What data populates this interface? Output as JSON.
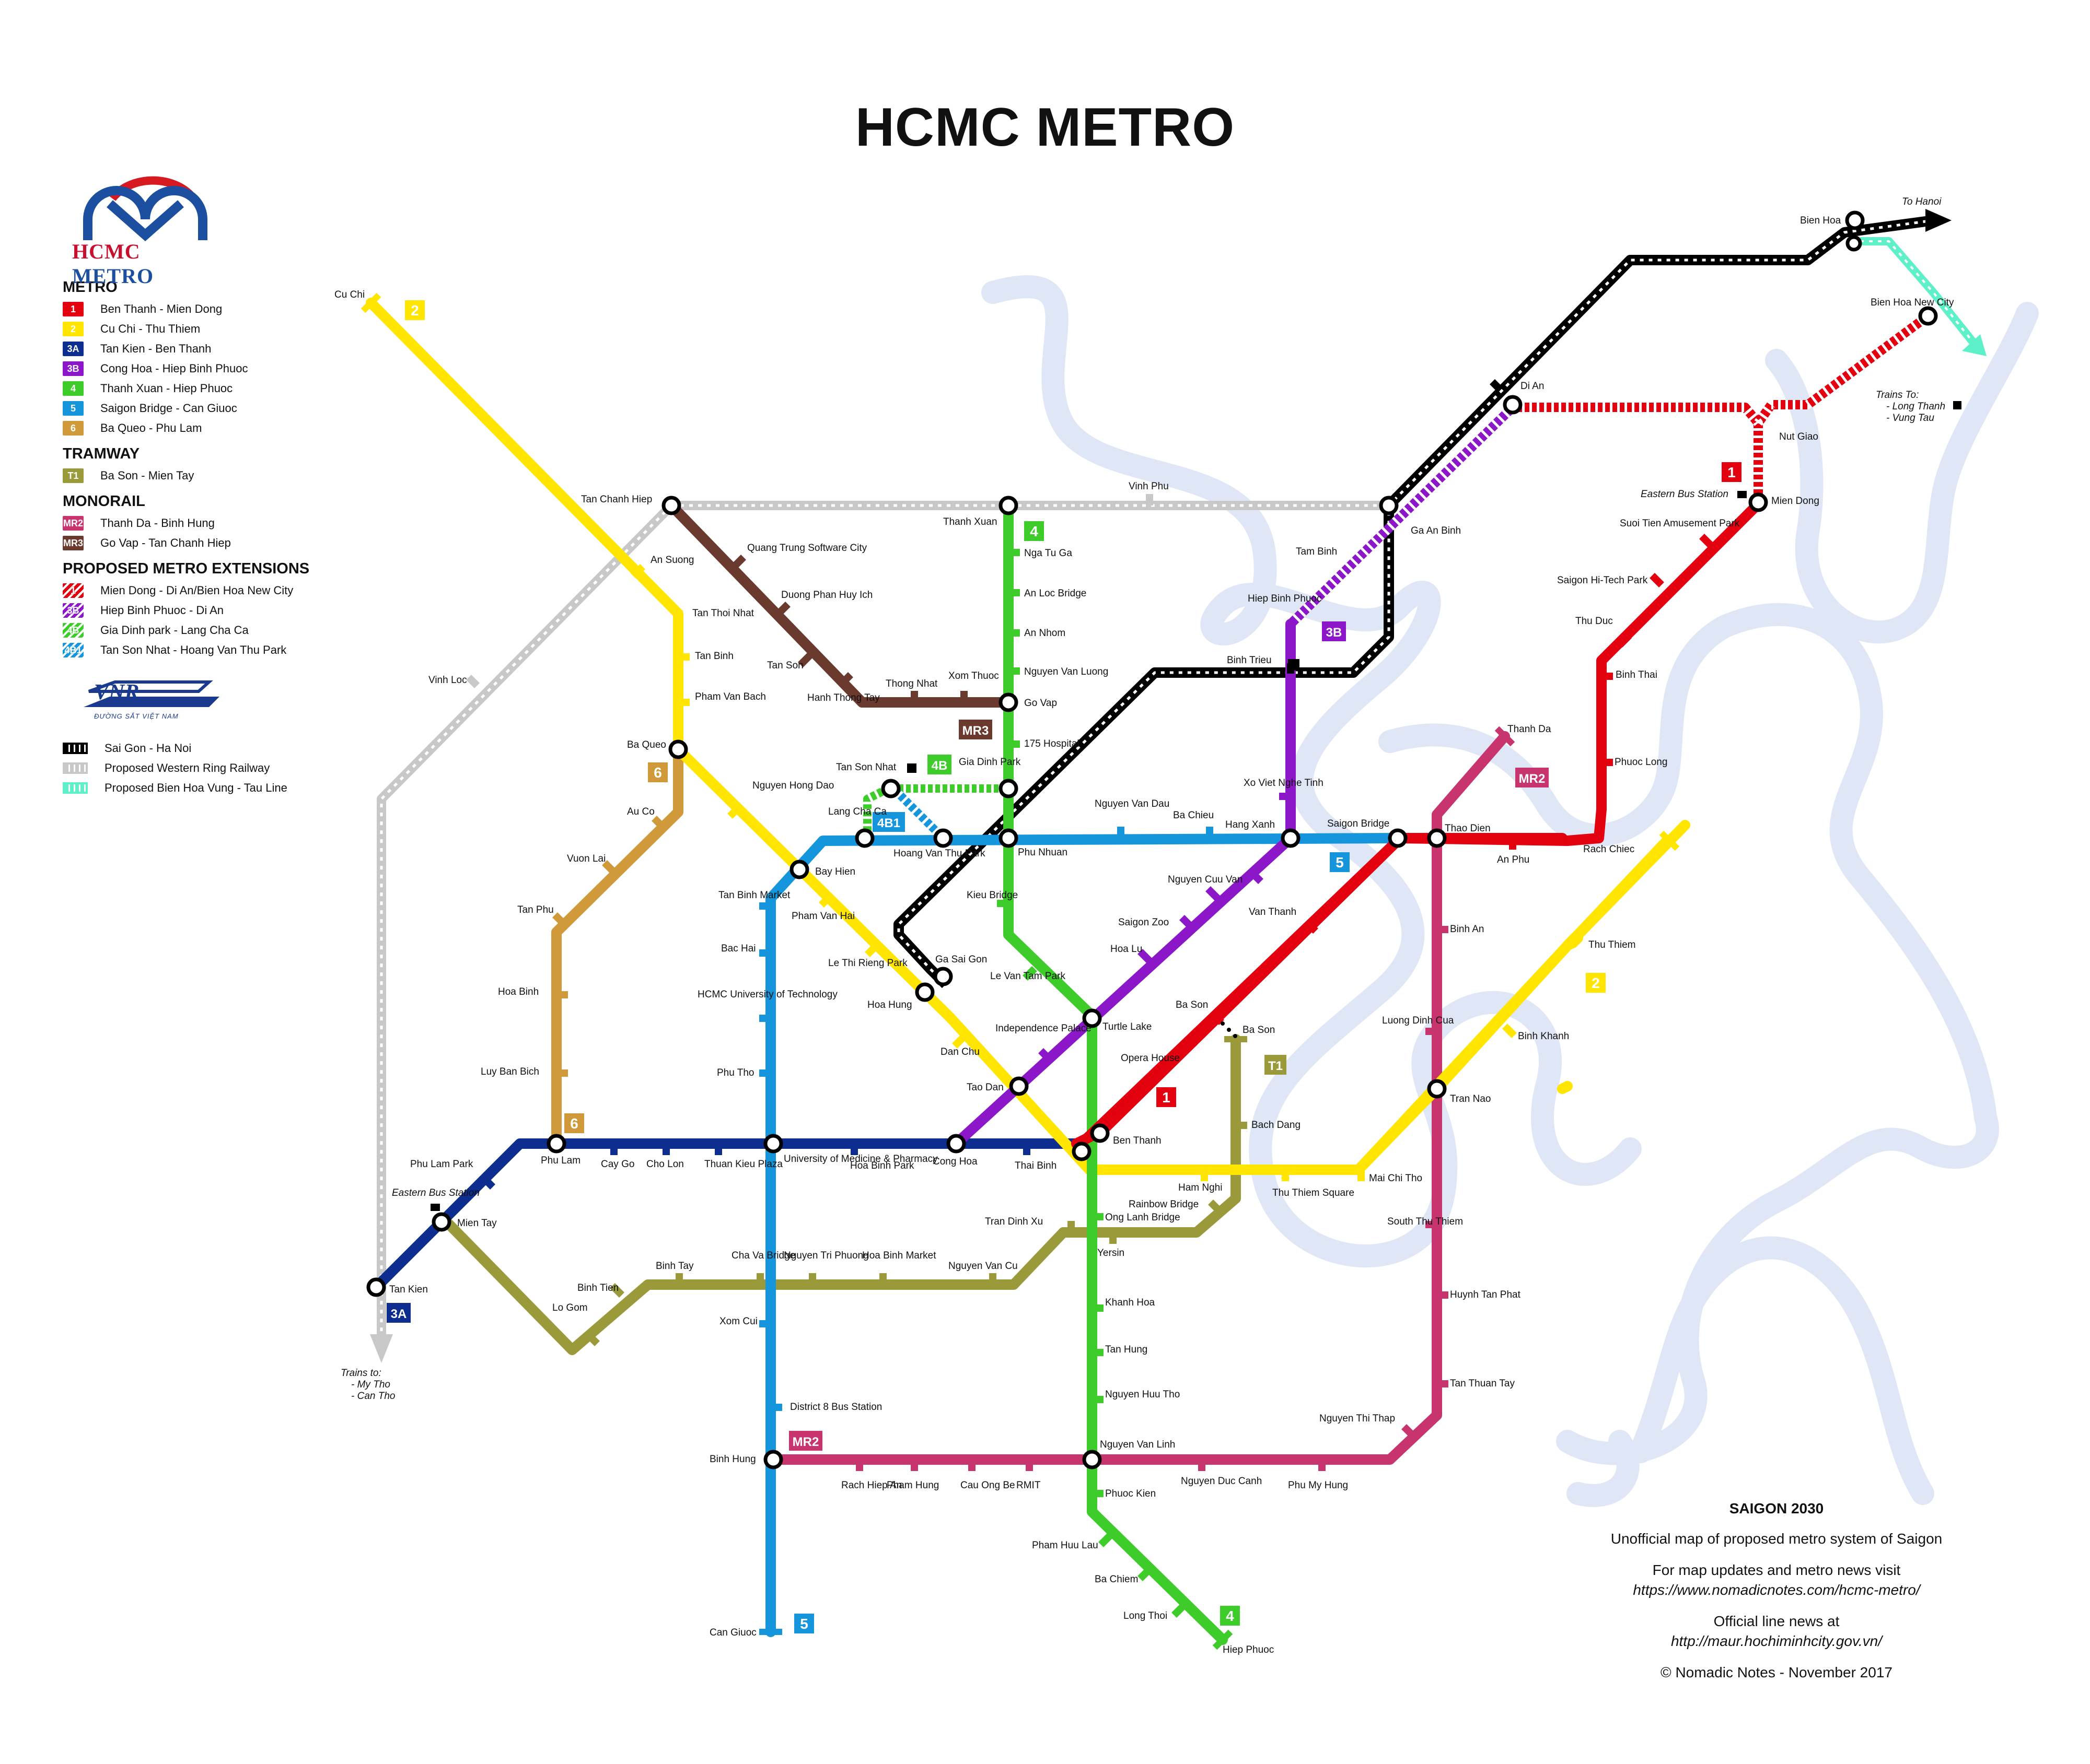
{
  "title": "HCMC METRO",
  "logo": {
    "text_a": "HCMC",
    "text_b": "METRO"
  },
  "legend": {
    "metro_heading": "METRO",
    "metro": [
      {
        "code": "1",
        "name": "Ben Thanh - Mien Dong",
        "color": "#e3000f"
      },
      {
        "code": "2",
        "name": "Cu Chi - Thu Thiem",
        "color": "#ffe500"
      },
      {
        "code": "3A",
        "name": "Tan Kien - Ben Thanh",
        "color": "#0d2e8f"
      },
      {
        "code": "3B",
        "name": "Cong Hoa - Hiep Binh Phuoc",
        "color": "#8b17c8"
      },
      {
        "code": "4",
        "name": "Thanh Xuan - Hiep Phuoc",
        "color": "#3dcc2a"
      },
      {
        "code": "5",
        "name": "Saigon Bridge - Can Giuoc",
        "color": "#1596dc"
      },
      {
        "code": "6",
        "name": "Ba Queo - Phu Lam",
        "color": "#d09a3a"
      }
    ],
    "tram_heading": "TRAMWAY",
    "tram": [
      {
        "code": "T1",
        "name": "Ba Son - Mien Tay",
        "color": "#9a9a3a"
      }
    ],
    "mono_heading": "MONORAIL",
    "mono": [
      {
        "code": "MR2",
        "name": "Thanh Da - Binh Hung",
        "color": "#c8346e"
      },
      {
        "code": "MR3",
        "name": "Go Vap - Tan Chanh Hiep",
        "color": "#6b3a2e"
      }
    ],
    "ext_heading": "PROPOSED METRO EXTENSIONS",
    "ext": [
      {
        "code": "1",
        "name": "Mien Dong - Di An/Bien Hoa New City",
        "color": "#e3000f"
      },
      {
        "code": "3B",
        "name": "Hiep Binh Phuoc - Di An",
        "color": "#8b17c8"
      },
      {
        "code": "4B",
        "name": "Gia Dinh park - Lang Cha Ca",
        "color": "#3dcc2a"
      },
      {
        "code": "4B1",
        "name": "Tan Son Nhat - Hoang Van Thu Park",
        "color": "#1596dc"
      }
    ],
    "vnr_logo": "VNR",
    "vnr_sub": "ĐƯỜNG SẮT VIỆT NAM",
    "rail": [
      {
        "name": "Sai Gon - Ha Noi",
        "color": "#000000"
      },
      {
        "name": "Proposed Western Ring Railway",
        "color": "#c8c8c8"
      },
      {
        "name": "Proposed Bien Hoa Vung - Tau Line",
        "color": "#5ef0c8"
      }
    ]
  },
  "info": {
    "heading": "SAIGON 2030",
    "line1": "Unofficial map of proposed metro system of Saigon",
    "line2": "For map updates and metro news visit",
    "line3": "https://www.nomadicnotes.com/hcmc-metro/",
    "line4": "Official line news at",
    "line5": "http://maur.hochiminhcity.gov.vn/",
    "line6": "© Nomadic Notes - November 2017"
  },
  "map": {
    "colors": {
      "l1": "#e3000f",
      "l2": "#ffe500",
      "l3a": "#0d2e8f",
      "l3b": "#8b17c8",
      "l4": "#3dcc2a",
      "l5": "#1596dc",
      "l6": "#d09a3a",
      "t1": "#9a9a3a",
      "mr2": "#c8346e",
      "mr3": "#6b3a2e",
      "rail": "#000000",
      "ring": "#c8c8c8",
      "bvt": "#5ef0c8",
      "river": "#dfe6f6"
    },
    "line_tags": {
      "l2_top": "2",
      "l2_right": "2",
      "l3a": "3A",
      "l3b": "3B",
      "l4_top": "4",
      "l4_bottom": "4",
      "l5_right": "5",
      "l5_bottom": "5",
      "l6_top": "6",
      "l6_bottom": "6",
      "t1": "T1",
      "mr2_top": "MR2",
      "mr2_bottom": "MR2",
      "mr3": "MR3",
      "l1_top": "1",
      "l1_mid": "1",
      "e4b": "4B",
      "e4b1": "4B1"
    },
    "labels": {
      "cu_chi": "Cu Chi",
      "an_suong": "An Suong",
      "tan_chanh_hiep": "Tan Chanh Hiep",
      "tan_thoi_nhat": "Tan Thoi Nhat",
      "tan_binh": "Tan Binh",
      "pham_van_bach": "Pham Van Bach",
      "ba_queo": "Ba Queo",
      "nguyen_hong_dao": "Nguyen Hong Dao",
      "bay_hien": "Bay Hien",
      "pham_van_hai": "Pham Van Hai",
      "le_thi_rieng": "Le Thi Rieng Park",
      "hoa_hung": "Hoa Hung",
      "dan_chu": "Dan Chu",
      "tao_dan": "Tao Dan",
      "ben_thanh": "Ben Thanh",
      "ham_nghi": "Ham Nghi",
      "thu_thiem_sq": "Thu Thiem Square",
      "mai_chi_tho": "Mai Chi Tho",
      "tran_nao": "Tran Nao",
      "binh_khanh": "Binh Khanh",
      "thu_thiem": "Thu Thiem",
      "quang_trung": "Quang Trung Software City",
      "duong_phan": "Duong Phan Huy Ich",
      "tan_son": "Tan Son",
      "hanh_thong_tay": "Hanh Thong Tay",
      "thong_nhat": "Thong Nhat",
      "xom_thuoc": "Xom Thuoc",
      "go_vap": "Go Vap",
      "thanh_xuan": "Thanh Xuan",
      "nga_tu_ga": "Nga Tu Ga",
      "an_loc": "An Loc Bridge",
      "an_nhom": "An Nhom",
      "nguyen_van_luong": "Nguyen Van Luong",
      "hospital_175": "175 Hospital",
      "gia_dinh_park": "Gia Dinh Park",
      "phu_nhuan": "Phu Nhuan",
      "kieu_bridge": "Kieu Bridge",
      "le_van_tam": "Le Van Tam Park",
      "turtle_lake": "Turtle Lake",
      "ong_lanh": "Ong Lanh Bridge",
      "yersin": "Yersin",
      "khanh_hoa": "Khanh Hoa",
      "tan_hung": "Tan Hung",
      "nguyen_huu_tho": "Nguyen Huu Tho",
      "nguyen_van_linh": "Nguyen Van Linh",
      "phuoc_kien": "Phuoc Kien",
      "pham_huu_lau": "Pham Huu Lau",
      "ba_chiem": "Ba Chiem",
      "long_thoi": "Long Thoi",
      "hiep_phuoc": "Hiep Phuoc",
      "tan_son_nhat": "Tan Son Nhat",
      "lang_cha_ca": "Lang Cha Ca",
      "hoang_van_thu": "Hoang Van Thu Park",
      "nguyen_van_dau": "Nguyen Van Dau",
      "ba_chieu": "Ba Chieu",
      "hang_xanh": "Hang Xanh",
      "saigon_bridge": "Saigon Bridge",
      "tan_binh_market": "Tan Binh Market",
      "bac_hai": "Bac Hai",
      "hcmc_tech": "HCMC University of Technology",
      "phu_tho": "Phu Tho",
      "univ_med": "University of Medicine & Pharmacy",
      "xom_cui": "Xom Cui",
      "district8": "District 8 Bus Station",
      "binh_hung": "Binh Hung",
      "can_giuoc": "Can Giuoc",
      "thao_dien": "Thao Dien",
      "an_phu": "An Phu",
      "rach_chiec": "Rach Chiec",
      "phuoc_long": "Phuoc Long",
      "binh_thai": "Binh Thai",
      "thu_duc": "Thu Duc",
      "saigon_hitech": "Saigon Hi-Tech Park",
      "suoi_tien": "Suoi Tien Amusement Park",
      "mien_dong": "Mien Dong",
      "eastern_bus_1": "Eastern Bus Station",
      "van_thanh": "Van Thanh",
      "ba_son_1": "Ba Son",
      "opera_house": "Opera House",
      "cong_hoa": "Cong Hoa",
      "independence": "Independence Palace",
      "hoa_lu": "Hoa Lu",
      "saigon_zoo": "Saigon Zoo",
      "nguyen_cuu_van": "Nguyen Cuu Van",
      "xo_viet": "Xo Viet Nghe Tinh",
      "hiep_binh_phuoc": "Hiep Binh Phuoc",
      "tam_binh": "Tam Binh",
      "ga_an_binh": "Ga An Binh",
      "di_an": "Di An",
      "nut_giao": "Nut Giao",
      "bien_hoa": "Bien Hoa",
      "bien_hoa_new": "Bien Hoa New City",
      "to_hanoi": "To Hanoi",
      "trains_to_lt": "Trains To:",
      "long_thanh": "- Long Thanh",
      "vung_tau": "- Vung Tau",
      "vinh_phu": "Vinh Phu",
      "vinh_loc": "Vinh Loc",
      "binh_trieu": "Binh Trieu",
      "ga_sai_gon": "Ga Sai Gon",
      "trains_to_mt": "Trains to:",
      "my_tho": "- My Tho",
      "can_tho": "- Can Tho",
      "tan_kien": "Tan Kien",
      "mien_tay": "Mien Tay",
      "eastern_bus_3a": "Eastern Bus Station",
      "phu_lam_park": "Phu Lam Park",
      "phu_lam": "Phu Lam",
      "cay_go": "Cay Go",
      "cho_lon": "Cho Lon",
      "thuan_kieu": "Thuan Kieu Plaza",
      "hoa_binh_park": "Hoa Binh Park",
      "thai_binh": "Thai Binh",
      "au_co": "Au Co",
      "vuon_lai": "Vuon Lai",
      "tan_phu": "Tan Phu",
      "hoa_binh": "Hoa Binh",
      "luy_ban_bich": "Luy Ban Bich",
      "lo_gom": "Lo Gom",
      "binh_tien": "Binh Tien",
      "binh_tay": "Binh Tay",
      "cha_va": "Cha Va Bridge",
      "nguyen_tri_phuong": "Nguyen Tri Phuong",
      "hoa_binh_market": "Hoa Binh Market",
      "nguyen_van_cu": "Nguyen Van Cu",
      "tran_dinh_xu": "Tran Dinh Xu",
      "rainbow": "Rainbow Bridge",
      "bach_dang": "Bach Dang",
      "ba_son_t1": "Ba Son",
      "thanh_da": "Thanh Da",
      "binh_an": "Binh An",
      "luong_dinh_cua": "Luong Dinh Cua",
      "south_thu_thiem": "South Thu Thiem",
      "huynh_tan_phat": "Huynh Tan Phat",
      "tan_thuan_tay": "Tan Thuan Tay",
      "nguyen_thi_thap": "Nguyen Thi Thap",
      "phu_my_hung": "Phu My Hung",
      "nguyen_duc_canh": "Nguyen Duc Canh",
      "rmit": "RMIT",
      "cau_ong_be": "Cau Ong Be",
      "pham_hung": "Pham Hung",
      "rach_hiep_an": "Rach Hiep An"
    }
  }
}
